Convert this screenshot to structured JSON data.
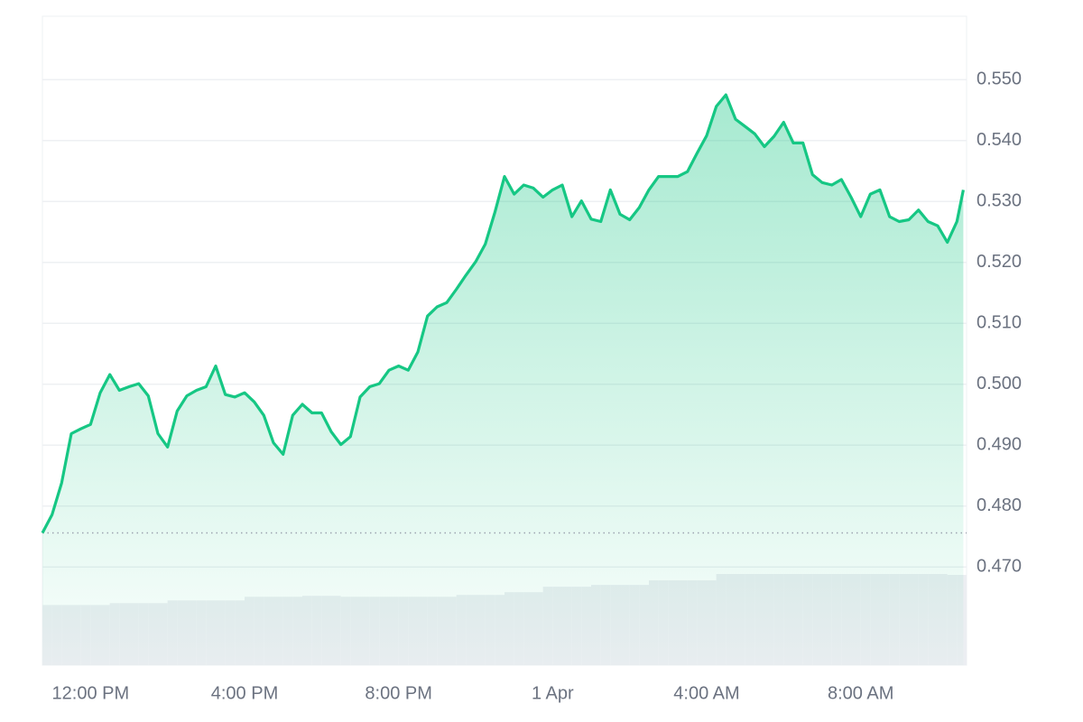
{
  "chart_data": {
    "type": "line",
    "x": [
      "31 Mar 10:45",
      "31 Mar 11:00",
      "31 Mar 11:15",
      "31 Mar 11:30",
      "31 Mar 11:45",
      "31 Mar 12:00",
      "31 Mar 12:15",
      "31 Mar 12:30",
      "31 Mar 12:45",
      "31 Mar 13:00",
      "31 Mar 13:15",
      "31 Mar 13:30",
      "31 Mar 13:45",
      "31 Mar 14:00",
      "31 Mar 14:15",
      "31 Mar 14:30",
      "31 Mar 14:45",
      "31 Mar 15:00",
      "31 Mar 15:15",
      "31 Mar 15:30",
      "31 Mar 15:45",
      "31 Mar 16:00",
      "31 Mar 16:15",
      "31 Mar 16:30",
      "31 Mar 16:45",
      "31 Mar 17:00",
      "31 Mar 17:15",
      "31 Mar 17:30",
      "31 Mar 17:45",
      "31 Mar 18:00",
      "31 Mar 18:15",
      "31 Mar 18:30",
      "31 Mar 18:45",
      "31 Mar 19:00",
      "31 Mar 19:15",
      "31 Mar 19:30",
      "31 Mar 19:45",
      "31 Mar 20:00",
      "31 Mar 20:15",
      "31 Mar 20:30",
      "31 Mar 20:45",
      "31 Mar 21:00",
      "31 Mar 21:15",
      "31 Mar 21:30",
      "31 Mar 21:45",
      "31 Mar 22:00",
      "31 Mar 22:15",
      "31 Mar 22:30",
      "31 Mar 22:45",
      "31 Mar 23:00",
      "31 Mar 23:15",
      "31 Mar 23:30",
      "31 Mar 23:45",
      "1 Apr 00:00",
      "1 Apr 00:15",
      "1 Apr 00:30",
      "1 Apr 00:45",
      "1 Apr 01:00",
      "1 Apr 01:15",
      "1 Apr 01:30",
      "1 Apr 01:45",
      "1 Apr 02:00",
      "1 Apr 02:15",
      "1 Apr 02:30",
      "1 Apr 02:45",
      "1 Apr 03:00",
      "1 Apr 03:15",
      "1 Apr 03:30",
      "1 Apr 03:45",
      "1 Apr 04:00",
      "1 Apr 04:15",
      "1 Apr 04:30",
      "1 Apr 04:45",
      "1 Apr 05:00",
      "1 Apr 05:15",
      "1 Apr 05:30",
      "1 Apr 05:45",
      "1 Apr 06:00",
      "1 Apr 06:15",
      "1 Apr 06:30",
      "1 Apr 06:45",
      "1 Apr 07:00",
      "1 Apr 07:15",
      "1 Apr 07:30",
      "1 Apr 07:45",
      "1 Apr 08:00",
      "1 Apr 08:15",
      "1 Apr 08:30",
      "1 Apr 08:45",
      "1 Apr 09:00",
      "1 Apr 09:15",
      "1 Apr 09:30",
      "1 Apr 09:45",
      "1 Apr 10:00",
      "1 Apr 10:15",
      "1 Apr 10:30",
      "1 Apr 10:40"
    ],
    "series": [
      {
        "color": "#16c784",
        "values": [
          0.4756,
          0.4786,
          0.4838,
          0.4919,
          0.4927,
          0.4934,
          0.4986,
          0.5016,
          0.499,
          0.4996,
          0.5001,
          0.4981,
          0.4919,
          0.4897,
          0.4956,
          0.4981,
          0.499,
          0.4996,
          0.503,
          0.4983,
          0.4979,
          0.4986,
          0.4971,
          0.4949,
          0.4904,
          0.4885,
          0.4949,
          0.4967,
          0.4953,
          0.4953,
          0.4922,
          0.4901,
          0.4914,
          0.4979,
          0.4996,
          0.5001,
          0.5023,
          0.503,
          0.5023,
          0.5053,
          0.5112,
          0.5127,
          0.5134,
          0.5156,
          0.5179,
          0.5201,
          0.523,
          0.5282,
          0.5341,
          0.5312,
          0.5327,
          0.5322,
          0.5307,
          0.5319,
          0.5327,
          0.5275,
          0.5301,
          0.5271,
          0.5267,
          0.5319,
          0.5279,
          0.527,
          0.529,
          0.5319,
          0.5341,
          0.5341,
          0.5341,
          0.5349,
          0.5379,
          0.5408,
          0.5456,
          0.5475,
          0.5435,
          0.5423,
          0.5411,
          0.539,
          0.5407,
          0.543,
          0.5396,
          0.5396,
          0.5344,
          0.5331,
          0.5327,
          0.5336,
          0.5307,
          0.5275,
          0.5312,
          0.5319,
          0.5275,
          0.5267,
          0.527,
          0.5286,
          0.5267,
          0.526,
          0.5233,
          0.5267,
          0.5319
        ]
      }
    ],
    "volume": {
      "color": "#eceef2",
      "ylim": [
        0,
        100
      ],
      "values": [
        66,
        66,
        66,
        66,
        66,
        66,
        66,
        68,
        68,
        68,
        68,
        68,
        68,
        71,
        71,
        71,
        71,
        71,
        71,
        71,
        71,
        75,
        75,
        75,
        75,
        75,
        75,
        76,
        76,
        76,
        76,
        75,
        75,
        75,
        75,
        75,
        75,
        75,
        75,
        75,
        75,
        75,
        75,
        77,
        77,
        77,
        77,
        77,
        80,
        80,
        80,
        80,
        86,
        86,
        86,
        86,
        86,
        88,
        88,
        88,
        88,
        88,
        88,
        93,
        93,
        93,
        93,
        93,
        93,
        93,
        100,
        100,
        100,
        100,
        100,
        100,
        100,
        100,
        100,
        100,
        100,
        100,
        100,
        100,
        100,
        100,
        100,
        100,
        100,
        100,
        100,
        100,
        100,
        100,
        99,
        99,
        99
      ]
    },
    "xlim": [
      "31 Mar 10:45",
      "1 Apr 10:45"
    ],
    "xticks": [
      {
        "value": "31 Mar 12:00",
        "label": "12:00 PM"
      },
      {
        "value": "31 Mar 16:00",
        "label": "4:00 PM"
      },
      {
        "value": "31 Mar 20:00",
        "label": "8:00 PM"
      },
      {
        "value": "1 Apr 00:00",
        "label": "1 Apr"
      },
      {
        "value": "1 Apr 04:00",
        "label": "4:00 AM"
      },
      {
        "value": "1 Apr 08:00",
        "label": "8:00 AM"
      }
    ],
    "ylim": [
      0.4539,
      0.5604
    ],
    "yticks": [
      {
        "value": 0.47,
        "label": "0.470"
      },
      {
        "value": 0.48,
        "label": "0.480"
      },
      {
        "value": 0.49,
        "label": "0.490"
      },
      {
        "value": 0.5,
        "label": "0.500"
      },
      {
        "value": 0.51,
        "label": "0.510"
      },
      {
        "value": 0.52,
        "label": "0.520"
      },
      {
        "value": 0.53,
        "label": "0.530"
      },
      {
        "value": 0.54,
        "label": "0.540"
      },
      {
        "value": 0.55,
        "label": "0.550"
      }
    ],
    "grid": true
  }
}
